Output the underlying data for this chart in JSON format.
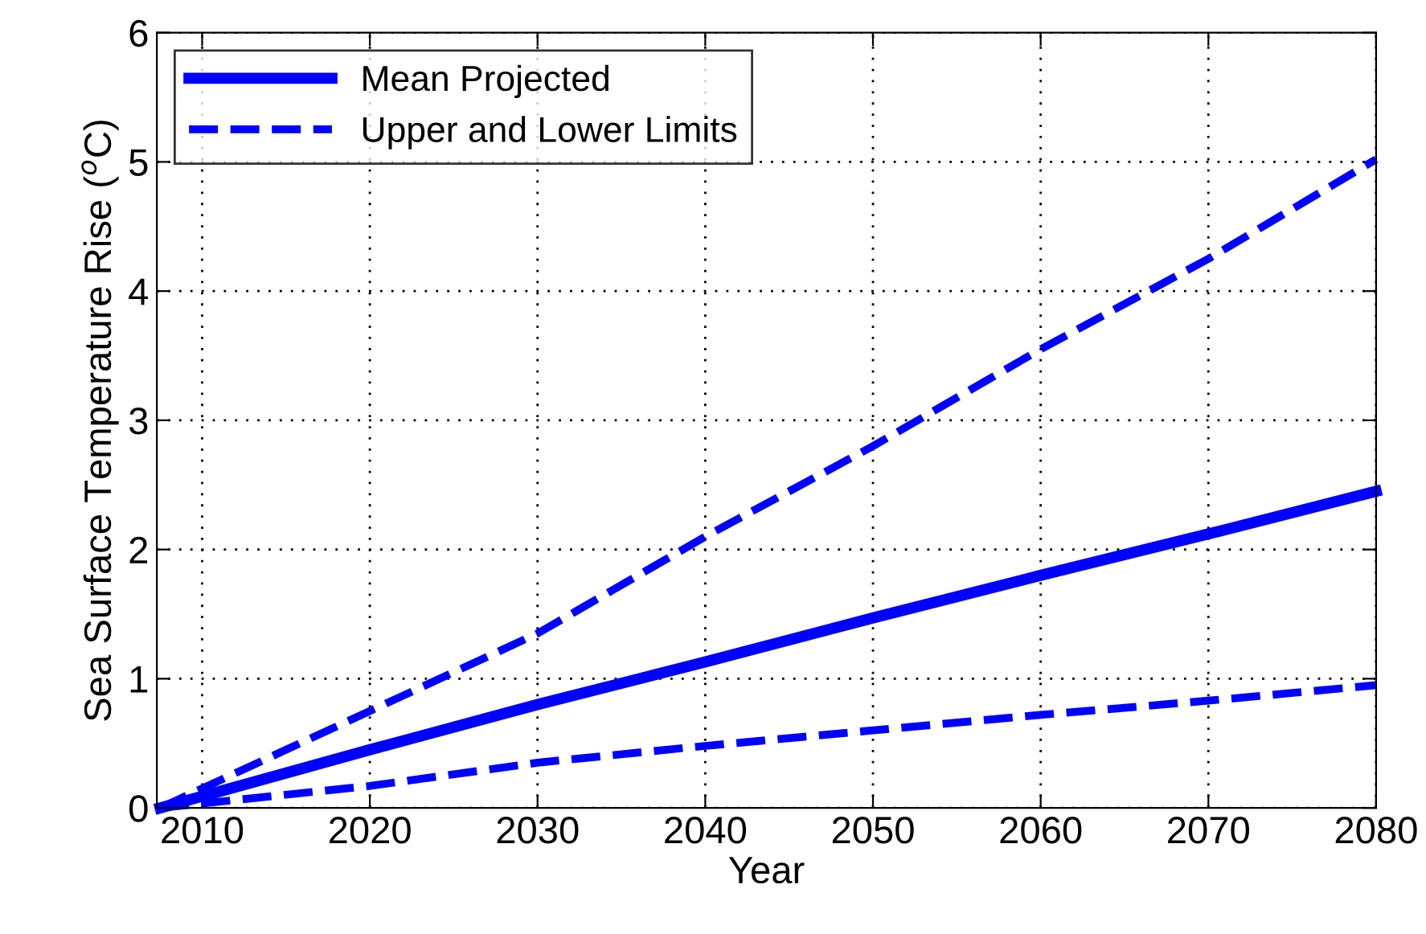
{
  "chart_data": {
    "type": "line",
    "xlabel": "Year",
    "ylabel": "Sea Surface Temperature Rise ($^{o}$C)",
    "xlim": [
      2007.3,
      2080
    ],
    "ylim": [
      0,
      6
    ],
    "xticks": [
      2010,
      2020,
      2030,
      2040,
      2050,
      2060,
      2070,
      2080
    ],
    "yticks": [
      0,
      1,
      2,
      3,
      4,
      5,
      6
    ],
    "grid": true,
    "legend": "top left",
    "series": [
      {
        "name": "Mean Projected",
        "color": "#0000ff",
        "line_style": "solid",
        "x": [
          2007.5,
          2020,
          2030,
          2040,
          2050,
          2060,
          2070,
          2080
        ],
        "values": [
          0,
          0.45,
          0.8,
          1.13,
          1.47,
          1.8,
          2.12,
          2.45
        ]
      },
      {
        "name": "Upper and Lower Limits",
        "color": "#0000ff",
        "line_style": "dashed",
        "x": [
          2007.5,
          2020,
          2030,
          2040,
          2050,
          2060,
          2070,
          2080
        ],
        "values": [
          0,
          0.75,
          1.35,
          2.1,
          2.8,
          3.55,
          4.25,
          5.02
        ]
      },
      {
        "color": "#0000ff",
        "line_style": "dashed",
        "x": [
          2007.5,
          2020,
          2030,
          2040,
          2050,
          2060,
          2070,
          2080
        ],
        "values": [
          0,
          0.17,
          0.35,
          0.48,
          0.6,
          0.72,
          0.83,
          0.95
        ]
      }
    ]
  }
}
